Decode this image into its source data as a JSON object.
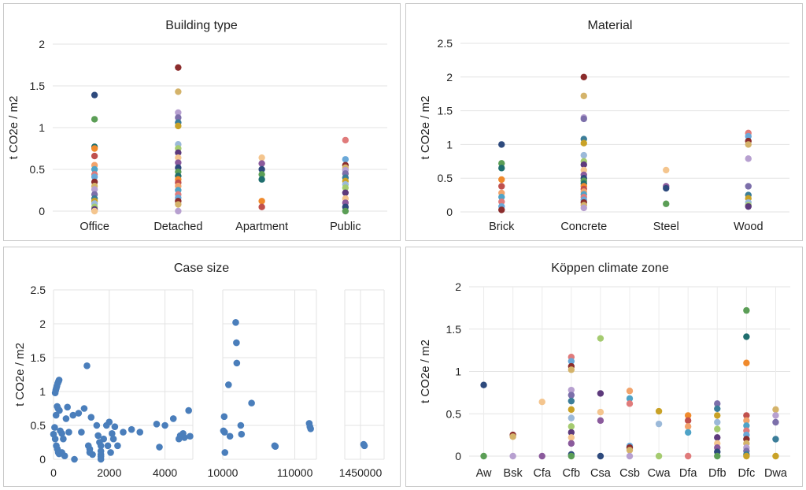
{
  "palette": [
    "#2e4a7d",
    "#f08a2c",
    "#4fa3c7",
    "#8b2c2c",
    "#7c6faa",
    "#9bb9d9",
    "#f4c58e",
    "#5b9e56",
    "#c0504d",
    "#e07b7b",
    "#d4b36a",
    "#3b7d99",
    "#a5cb70",
    "#8a5a9c",
    "#1f6e6e",
    "#f2a36b",
    "#6aa8d8",
    "#b7a0d0",
    "#c9a227",
    "#5d3a7c"
  ],
  "chart_data": [
    {
      "id": "building",
      "type": "scatter",
      "title": "Building type",
      "ylabel": "t CO2e / m2",
      "ylim": [
        0,
        2
      ],
      "yticks": [
        "0",
        "0.5",
        "1",
        "1.5",
        "2"
      ],
      "categories": [
        "Office",
        "Detached",
        "Apartment",
        "Public"
      ],
      "points": [
        [
          1.39,
          1.1,
          0.77,
          0.75,
          0.66,
          0.55,
          0.5,
          0.44,
          0.41,
          0.35,
          0.3,
          0.26,
          0.2,
          0.15,
          0.12,
          0.09,
          0.05,
          0.02,
          0.0
        ],
        [
          1.72,
          1.43,
          1.18,
          1.12,
          1.06,
          1.02,
          0.8,
          0.75,
          0.7,
          0.64,
          0.58,
          0.52,
          0.47,
          0.42,
          0.38,
          0.34,
          0.3,
          0.25,
          0.2,
          0.16,
          0.12,
          0.08,
          0.0
        ],
        [
          0.64,
          0.57,
          0.5,
          0.44,
          0.38,
          0.12,
          0.05
        ],
        [
          0.85,
          0.62,
          0.55,
          0.52,
          0.49,
          0.45,
          0.4,
          0.36,
          0.32,
          0.28,
          0.22,
          0.15,
          0.1,
          0.05,
          0.0
        ]
      ]
    },
    {
      "id": "material",
      "type": "scatter",
      "title": "Material",
      "ylabel": "t CO2e / m2",
      "ylim": [
        0,
        2.5
      ],
      "yticks": [
        "0",
        "0.5",
        "1",
        "1.5",
        "2",
        "2.5"
      ],
      "categories": [
        "Brick",
        "Concrete",
        "Steel",
        "Wood"
      ],
      "points": [
        [
          1.0,
          0.72,
          0.65,
          0.48,
          0.38,
          0.28,
          0.22,
          0.15,
          0.08,
          0.03
        ],
        [
          2.0,
          1.72,
          1.4,
          1.38,
          1.08,
          1.02,
          0.84,
          0.75,
          0.7,
          0.62,
          0.55,
          0.5,
          0.46,
          0.42,
          0.38,
          0.34,
          0.3,
          0.26,
          0.22,
          0.18,
          0.14,
          0.1,
          0.06
        ],
        [
          0.62,
          0.38,
          0.35,
          0.12
        ],
        [
          1.17,
          1.12,
          1.05,
          1.0,
          0.79,
          0.38,
          0.25,
          0.2,
          0.14,
          0.1,
          0.08
        ]
      ]
    },
    {
      "id": "casesize",
      "type": "scatter",
      "title": "Case size",
      "ylabel": "t CO2e / m2",
      "ylim": [
        0,
        2.5
      ],
      "yticks": [
        "0",
        "0.5",
        "1",
        "1.5",
        "2",
        "2.5"
      ],
      "segments": [
        {
          "tick_labels": [
            "0",
            "2000",
            "4000"
          ],
          "tick_values": [
            0,
            2000,
            4000
          ],
          "range": [
            0,
            5000
          ]
        },
        {
          "tick_labels": [
            "10000",
            "110000"
          ],
          "tick_values": [
            10000,
            110000
          ],
          "range": [
            10000,
            140000
          ]
        },
        {
          "tick_labels": [
            "1450000"
          ],
          "tick_values": [
            1450000
          ],
          "range": [
            1350000,
            1600000
          ]
        }
      ],
      "points": [
        [
          0,
          0.37
        ],
        [
          40,
          0.47
        ],
        [
          60,
          0.98
        ],
        [
          80,
          1.02
        ],
        [
          100,
          1.05
        ],
        [
          120,
          1.08
        ],
        [
          150,
          1.12
        ],
        [
          180,
          1.15
        ],
        [
          200,
          1.17
        ],
        [
          90,
          0.65
        ],
        [
          130,
          0.78
        ],
        [
          160,
          0.75
        ],
        [
          210,
          0.72
        ],
        [
          60,
          0.3
        ],
        [
          100,
          0.2
        ],
        [
          140,
          0.15
        ],
        [
          170,
          0.1
        ],
        [
          200,
          0.08
        ],
        [
          240,
          0.42
        ],
        [
          300,
          0.38
        ],
        [
          350,
          0.3
        ],
        [
          300,
          0.1
        ],
        [
          400,
          0.05
        ],
        [
          450,
          0.6
        ],
        [
          500,
          0.77
        ],
        [
          550,
          0.4
        ],
        [
          700,
          0.65
        ],
        [
          750,
          0.0
        ],
        [
          900,
          0.68
        ],
        [
          1000,
          0.4
        ],
        [
          1100,
          0.75
        ],
        [
          1200,
          1.38
        ],
        [
          1250,
          0.2
        ],
        [
          1300,
          0.15
        ],
        [
          1300,
          0.1
        ],
        [
          1350,
          0.62
        ],
        [
          1400,
          0.07
        ],
        [
          1550,
          0.5
        ],
        [
          1600,
          0.35
        ],
        [
          1650,
          0.25
        ],
        [
          1700,
          0.2
        ],
        [
          1700,
          0.12
        ],
        [
          1700,
          0.07
        ],
        [
          1700,
          0.04
        ],
        [
          1700,
          0.0
        ],
        [
          1800,
          0.3
        ],
        [
          1900,
          0.5
        ],
        [
          1950,
          0.2
        ],
        [
          2000,
          0.55
        ],
        [
          2050,
          0.1
        ],
        [
          2100,
          0.38
        ],
        [
          2150,
          0.3
        ],
        [
          2200,
          0.48
        ],
        [
          2300,
          0.2
        ],
        [
          2500,
          0.4
        ],
        [
          2800,
          0.44
        ],
        [
          3100,
          0.4
        ],
        [
          3700,
          0.52
        ],
        [
          3800,
          0.18
        ],
        [
          4000,
          0.5
        ],
        [
          4300,
          0.6
        ],
        [
          4500,
          0.3
        ],
        [
          4550,
          0.35
        ],
        [
          4650,
          0.38
        ],
        [
          4850,
          0.72
        ],
        [
          4700,
          0.32
        ],
        [
          4900,
          0.34
        ],
        [
          12000,
          0.63
        ],
        [
          11000,
          0.42
        ],
        [
          12500,
          0.4
        ],
        [
          13000,
          0.1
        ],
        [
          18000,
          1.1
        ],
        [
          20000,
          0.34
        ],
        [
          28000,
          2.02
        ],
        [
          29000,
          1.72
        ],
        [
          29500,
          1.42
        ],
        [
          35000,
          0.5
        ],
        [
          36000,
          0.37
        ],
        [
          50000,
          0.83
        ],
        [
          82000,
          0.2
        ],
        [
          83000,
          0.19
        ],
        [
          130000,
          0.53
        ],
        [
          131000,
          0.48
        ],
        [
          132000,
          0.45
        ],
        [
          1470000,
          0.22
        ],
        [
          1475000,
          0.2
        ]
      ]
    },
    {
      "id": "koppen",
      "type": "scatter",
      "title": "Köppen climate zone",
      "ylabel": "t CO2e / m2",
      "ylim": [
        0,
        2
      ],
      "yticks": [
        "0",
        "0.5",
        "1",
        "1.5",
        "2"
      ],
      "categories": [
        "Aw",
        "Bsk",
        "Cfa",
        "Cfb",
        "Csa",
        "Csb",
        "Cwa",
        "Dfa",
        "Dfb",
        "Dfc",
        "Dwa"
      ],
      "points": [
        [
          0.84,
          0.0
        ],
        [
          0.25,
          0.23,
          0.0
        ],
        [
          0.64,
          0.0
        ],
        [
          1.17,
          1.12,
          1.06,
          1.02,
          0.78,
          0.72,
          0.65,
          0.55,
          0.45,
          0.35,
          0.28,
          0.22,
          0.15,
          0.02,
          0.0
        ],
        [
          1.39,
          0.74,
          0.52,
          0.42,
          0.0
        ],
        [
          0.77,
          0.68,
          0.62,
          0.12,
          0.1,
          0.07,
          0.0
        ],
        [
          0.53,
          0.38,
          0.0
        ],
        [
          0.48,
          0.42,
          0.35,
          0.28,
          0.0
        ],
        [
          0.62,
          0.56,
          0.48,
          0.4,
          0.32,
          0.22,
          0.15,
          0.1,
          0.05,
          0.0
        ],
        [
          1.72,
          1.41,
          1.1,
          0.48,
          0.42,
          0.36,
          0.3,
          0.25,
          0.2,
          0.15,
          0.1,
          0.06,
          0.02,
          0.0
        ],
        [
          0.55,
          0.48,
          0.4,
          0.2,
          0.0
        ]
      ]
    }
  ]
}
